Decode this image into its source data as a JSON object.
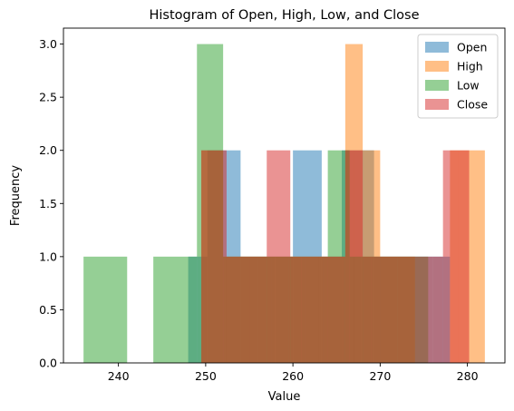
{
  "chart_data": {
    "type": "histogram",
    "title": "Histogram of Open, High, Low, and Close",
    "xlabel": "Value",
    "ylabel": "Frequency",
    "xlim": [
      233.7,
      284.3
    ],
    "ylim": [
      0,
      3.15
    ],
    "xticks": [
      240,
      250,
      260,
      270,
      280
    ],
    "yticks": [
      0.0,
      0.5,
      1.0,
      1.5,
      2.0,
      2.5,
      3.0
    ],
    "ytick_labels": [
      "0.0",
      "0.5",
      "1.0",
      "1.5",
      "2.0",
      "2.5",
      "3.0"
    ],
    "legend_position": "upper right",
    "alpha": 0.5,
    "series": [
      {
        "name": "Open",
        "color": "#1f77b4",
        "bins": [
          [
            248.0,
            250.2,
            1
          ],
          [
            250.2,
            252.4,
            2
          ],
          [
            252.4,
            254.0,
            2
          ],
          [
            254.0,
            256.0,
            1
          ],
          [
            256.0,
            258.0,
            1
          ],
          [
            258.0,
            260.0,
            1
          ],
          [
            260.0,
            263.3,
            2
          ],
          [
            263.3,
            265.6,
            1
          ],
          [
            265.6,
            267.8,
            2
          ],
          [
            267.8,
            269.3,
            2
          ],
          [
            269.3,
            272.0,
            1
          ],
          [
            272.0,
            274.0,
            1
          ],
          [
            274.0,
            276.0,
            1
          ],
          [
            276.0,
            278.0,
            1
          ],
          [
            278.0,
            280.0,
            0
          ]
        ]
      },
      {
        "name": "High",
        "color": "#ff7f0e",
        "bins": [
          [
            249.5,
            252.0,
            2
          ],
          [
            252.0,
            254.0,
            1
          ],
          [
            254.0,
            256.0,
            1
          ],
          [
            256.0,
            257.5,
            1
          ],
          [
            257.5,
            259.5,
            1
          ],
          [
            259.5,
            261.5,
            1
          ],
          [
            261.5,
            263.5,
            1
          ],
          [
            263.5,
            266.0,
            1
          ],
          [
            266.0,
            268.0,
            3
          ],
          [
            268.0,
            270.0,
            2
          ],
          [
            270.0,
            272.0,
            1
          ],
          [
            272.0,
            274.0,
            1
          ],
          [
            274.0,
            276.0,
            0
          ],
          [
            276.0,
            278.0,
            0
          ],
          [
            278.0,
            280.0,
            2
          ],
          [
            280.0,
            282.0,
            2
          ]
        ]
      },
      {
        "name": "Low",
        "color": "#2ca02c",
        "bins": [
          [
            236.0,
            241.0,
            1
          ],
          [
            241.0,
            244.0,
            0
          ],
          [
            244.0,
            249.0,
            1
          ],
          [
            249.0,
            252.0,
            3
          ],
          [
            252.0,
            255.0,
            1
          ],
          [
            255.0,
            258.0,
            1
          ],
          [
            258.0,
            261.0,
            1
          ],
          [
            261.0,
            264.0,
            1
          ],
          [
            264.0,
            266.5,
            2
          ],
          [
            266.5,
            269.0,
            1
          ],
          [
            269.0,
            272.0,
            1
          ],
          [
            272.0,
            274.0,
            1
          ],
          [
            274.0,
            275.5,
            1
          ]
        ]
      },
      {
        "name": "Close",
        "color": "#d62728",
        "bins": [
          [
            249.5,
            252.4,
            2
          ],
          [
            252.4,
            255.0,
            1
          ],
          [
            255.0,
            257.0,
            1
          ],
          [
            257.0,
            259.7,
            2
          ],
          [
            259.7,
            263.0,
            1
          ],
          [
            263.0,
            266.0,
            1
          ],
          [
            266.0,
            267.0,
            2
          ],
          [
            267.0,
            268.0,
            2
          ],
          [
            268.0,
            272.0,
            1
          ],
          [
            272.0,
            274.0,
            1
          ],
          [
            274.0,
            276.0,
            1
          ],
          [
            276.0,
            277.2,
            1
          ],
          [
            277.2,
            279.0,
            2
          ],
          [
            279.0,
            280.2,
            2
          ]
        ]
      }
    ]
  }
}
